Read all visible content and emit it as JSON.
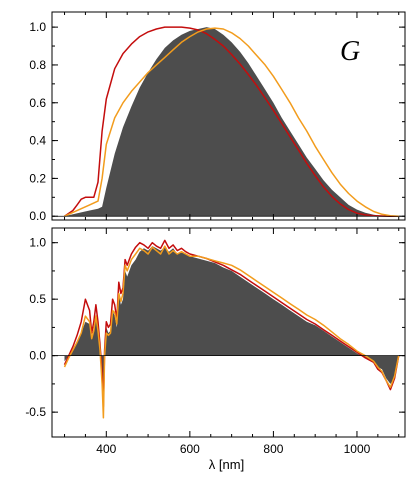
{
  "colors": {
    "fill": "#4d4d4d",
    "red": "#c40d0d",
    "orange": "#f29c1d",
    "axis": "#000000"
  },
  "chart_data": [
    {
      "type": "area",
      "panel_label": "G",
      "xlim": [
        270,
        1115
      ],
      "ylim": [
        -0.02,
        1.08
      ],
      "xticks": [
        400,
        600,
        800,
        1000
      ],
      "yticks": [
        0.0,
        0.2,
        0.4,
        0.6,
        0.8,
        1.0
      ],
      "ytick_labels": [
        "0.0",
        "0.2",
        "0.4",
        "0.6",
        "0.8",
        "1.0"
      ],
      "series": [
        {
          "style": "filled",
          "x": [
            300,
            320,
            340,
            360,
            380,
            390,
            400,
            420,
            440,
            460,
            480,
            500,
            520,
            540,
            560,
            580,
            600,
            620,
            640,
            660,
            680,
            700,
            720,
            740,
            760,
            780,
            800,
            820,
            840,
            860,
            880,
            900,
            920,
            940,
            960,
            980,
            1000,
            1020,
            1040,
            1060,
            1080,
            1100
          ],
          "y": [
            0.0,
            0.01,
            0.02,
            0.03,
            0.04,
            0.05,
            0.15,
            0.33,
            0.47,
            0.58,
            0.68,
            0.76,
            0.83,
            0.89,
            0.93,
            0.96,
            0.98,
            0.99,
            1.0,
            0.99,
            0.96,
            0.92,
            0.87,
            0.81,
            0.74,
            0.67,
            0.6,
            0.52,
            0.45,
            0.38,
            0.31,
            0.25,
            0.19,
            0.14,
            0.1,
            0.06,
            0.035,
            0.018,
            0.008,
            0.003,
            0.001,
            0.0
          ]
        },
        {
          "style": "line-red",
          "x": [
            300,
            320,
            330,
            340,
            350,
            360,
            370,
            380,
            390,
            400,
            420,
            440,
            460,
            480,
            500,
            520,
            540,
            560,
            580,
            600,
            620,
            640,
            660,
            680,
            700,
            720,
            740,
            760,
            780,
            800,
            820,
            840,
            860,
            880,
            900,
            920,
            940,
            960,
            980,
            1000,
            1020,
            1040,
            1060,
            1080,
            1100
          ],
          "y": [
            0.0,
            0.03,
            0.06,
            0.09,
            0.1,
            0.1,
            0.1,
            0.18,
            0.45,
            0.62,
            0.78,
            0.86,
            0.91,
            0.95,
            0.975,
            0.99,
            1.0,
            1.0,
            1.0,
            0.995,
            0.985,
            0.965,
            0.935,
            0.9,
            0.855,
            0.805,
            0.75,
            0.69,
            0.625,
            0.56,
            0.49,
            0.42,
            0.35,
            0.28,
            0.215,
            0.155,
            0.105,
            0.065,
            0.035,
            0.016,
            0.007,
            0.003,
            0.001,
            0.0,
            0.0
          ]
        },
        {
          "style": "line-orange",
          "x": [
            300,
            320,
            340,
            360,
            380,
            390,
            400,
            420,
            440,
            460,
            480,
            500,
            520,
            540,
            560,
            580,
            600,
            620,
            640,
            660,
            680,
            700,
            720,
            740,
            760,
            780,
            800,
            820,
            840,
            860,
            880,
            900,
            920,
            940,
            960,
            980,
            1000,
            1020,
            1040,
            1060,
            1080,
            1100
          ],
          "y": [
            0.0,
            0.02,
            0.04,
            0.06,
            0.08,
            0.2,
            0.38,
            0.52,
            0.6,
            0.66,
            0.71,
            0.76,
            0.8,
            0.84,
            0.88,
            0.92,
            0.95,
            0.975,
            0.99,
            0.995,
            0.99,
            0.97,
            0.94,
            0.9,
            0.85,
            0.8,
            0.74,
            0.67,
            0.6,
            0.52,
            0.45,
            0.37,
            0.3,
            0.23,
            0.17,
            0.12,
            0.08,
            0.05,
            0.025,
            0.01,
            0.003,
            0.0
          ]
        }
      ]
    },
    {
      "type": "area",
      "xlim": [
        270,
        1115
      ],
      "ylim": [
        -0.72,
        1.13
      ],
      "xticks": [
        400,
        600,
        800,
        1000
      ],
      "xtick_labels": [
        "400",
        "600",
        "800",
        "1000"
      ],
      "yticks": [
        -0.5,
        0.0,
        0.5,
        1.0
      ],
      "ytick_labels": [
        "-0.5",
        "0.0",
        "0.5",
        "1.0"
      ],
      "xlabel": "λ [nm]",
      "series": [
        {
          "style": "filled",
          "x": [
            300,
            310,
            320,
            330,
            340,
            350,
            360,
            365,
            370,
            375,
            380,
            385,
            390,
            393,
            396,
            400,
            405,
            410,
            415,
            420,
            425,
            430,
            435,
            440,
            445,
            450,
            460,
            470,
            480,
            490,
            500,
            510,
            520,
            530,
            540,
            550,
            560,
            570,
            580,
            590,
            600,
            620,
            640,
            660,
            680,
            700,
            720,
            740,
            760,
            780,
            800,
            820,
            840,
            860,
            880,
            900,
            920,
            940,
            960,
            980,
            1000,
            1020,
            1040,
            1050,
            1060,
            1070,
            1080,
            1090,
            1100
          ],
          "y": [
            -0.05,
            0.0,
            0.05,
            0.12,
            0.2,
            0.3,
            0.28,
            0.15,
            0.22,
            0.35,
            0.25,
            0.1,
            -0.15,
            -0.4,
            0.05,
            0.25,
            0.2,
            0.22,
            0.4,
            0.35,
            0.25,
            0.55,
            0.45,
            0.5,
            0.75,
            0.7,
            0.8,
            0.85,
            0.92,
            0.95,
            0.93,
            0.97,
            0.95,
            0.93,
            0.96,
            0.92,
            0.95,
            0.9,
            0.92,
            0.9,
            0.88,
            0.86,
            0.84,
            0.82,
            0.78,
            0.75,
            0.7,
            0.65,
            0.6,
            0.55,
            0.5,
            0.45,
            0.4,
            0.35,
            0.3,
            0.27,
            0.22,
            0.17,
            0.12,
            0.07,
            0.02,
            -0.02,
            -0.05,
            -0.1,
            -0.12,
            -0.2,
            -0.25,
            -0.2,
            0.0
          ]
        },
        {
          "style": "line-red",
          "x": [
            300,
            310,
            320,
            330,
            340,
            350,
            360,
            365,
            370,
            375,
            380,
            385,
            390,
            393,
            396,
            400,
            405,
            410,
            415,
            420,
            425,
            430,
            435,
            440,
            445,
            450,
            460,
            470,
            480,
            490,
            500,
            510,
            520,
            530,
            540,
            550,
            560,
            570,
            580,
            590,
            600,
            620,
            640,
            660,
            680,
            700,
            720,
            740,
            760,
            780,
            800,
            820,
            840,
            860,
            880,
            900,
            920,
            940,
            960,
            980,
            1000,
            1020,
            1040,
            1050,
            1060,
            1070,
            1080,
            1090,
            1100
          ],
          "y": [
            -0.08,
            0.0,
            0.08,
            0.18,
            0.3,
            0.5,
            0.4,
            0.2,
            0.3,
            0.45,
            0.3,
            0.1,
            -0.15,
            -0.45,
            0.05,
            0.3,
            0.25,
            0.28,
            0.5,
            0.45,
            0.32,
            0.65,
            0.55,
            0.6,
            0.85,
            0.8,
            0.9,
            0.96,
            1.0,
            0.98,
            0.95,
            1.0,
            0.97,
            0.95,
            1.02,
            0.95,
            0.98,
            0.93,
            0.95,
            0.92,
            0.9,
            0.88,
            0.86,
            0.83,
            0.8,
            0.76,
            0.72,
            0.67,
            0.62,
            0.57,
            0.52,
            0.47,
            0.42,
            0.37,
            0.32,
            0.28,
            0.23,
            0.18,
            0.13,
            0.08,
            0.03,
            -0.02,
            -0.06,
            -0.12,
            -0.15,
            -0.22,
            -0.3,
            -0.2,
            0.0
          ]
        },
        {
          "style": "line-orange",
          "x": [
            300,
            310,
            320,
            330,
            340,
            350,
            360,
            365,
            370,
            375,
            380,
            385,
            390,
            393,
            396,
            400,
            405,
            410,
            415,
            420,
            425,
            430,
            435,
            440,
            445,
            450,
            460,
            470,
            480,
            490,
            500,
            510,
            520,
            530,
            540,
            550,
            560,
            570,
            580,
            590,
            600,
            620,
            640,
            660,
            680,
            700,
            720,
            740,
            760,
            780,
            800,
            820,
            840,
            860,
            880,
            900,
            920,
            940,
            960,
            980,
            1000,
            1020,
            1040,
            1050,
            1060,
            1070,
            1080,
            1090,
            1100
          ],
          "y": [
            -0.1,
            -0.02,
            0.05,
            0.12,
            0.2,
            0.35,
            0.3,
            0.15,
            0.22,
            0.35,
            0.22,
            0.05,
            -0.25,
            -0.55,
            0.0,
            0.2,
            0.18,
            0.2,
            0.4,
            0.38,
            0.28,
            0.55,
            0.48,
            0.55,
            0.8,
            0.75,
            0.85,
            0.9,
            0.95,
            0.93,
            0.9,
            0.96,
            0.93,
            0.9,
            0.97,
            0.9,
            0.93,
            0.9,
            0.92,
            0.9,
            0.88,
            0.88,
            0.86,
            0.84,
            0.82,
            0.8,
            0.76,
            0.71,
            0.66,
            0.61,
            0.56,
            0.51,
            0.46,
            0.41,
            0.36,
            0.32,
            0.27,
            0.21,
            0.15,
            0.1,
            0.04,
            0.0,
            -0.05,
            -0.1,
            -0.14,
            -0.22,
            -0.28,
            -0.18,
            0.0
          ]
        }
      ]
    }
  ]
}
